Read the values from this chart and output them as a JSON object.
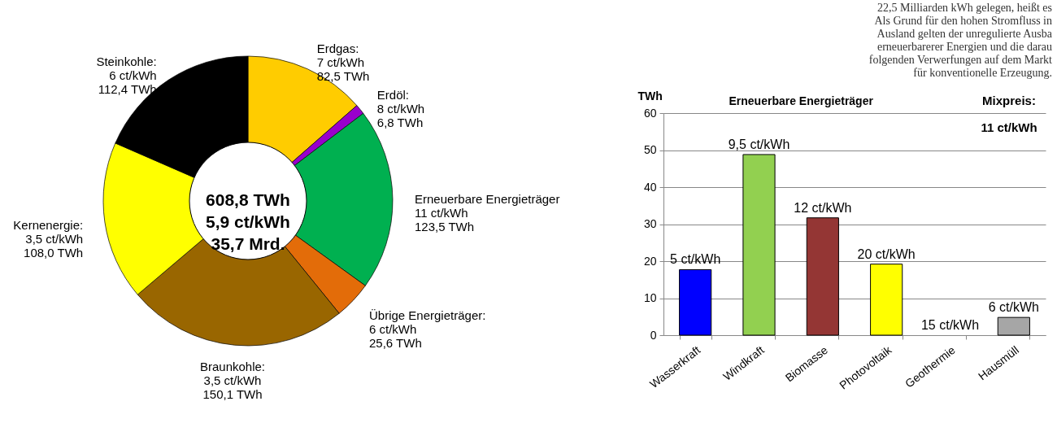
{
  "chart_data": [
    {
      "type": "donut",
      "categories": [
        "Erdgas: 7 ct/kWh",
        "Erdöl: 8 ct/kWh",
        "Erneuerbare Energieträger 11 ct/kWh",
        "Übrige Energieträger: 6 ct/kWh",
        "Braunkohle: 3,5 ct/kWh",
        "Kernenergie: 3,5 ct/kWh",
        "Steinkohle: 6 ct/kWh"
      ],
      "values": [
        82.5,
        6.8,
        123.5,
        25.6,
        150.1,
        108.0,
        112.4
      ],
      "value_labels": [
        "82,5 TWh",
        "6,8 TWh",
        "123,5 TWh",
        "25,6 TWh",
        "150,1 TWh",
        "108,0 TWh",
        "112,4 TWh"
      ],
      "colors": [
        "#ffcc00",
        "#9900cc",
        "#00b050",
        "#e36c09",
        "#996600",
        "#ffff00",
        "#000000"
      ],
      "annotations": [
        "608,8 TWh",
        "5,9 ct/kWh",
        "35,7 Mrd."
      ]
    },
    {
      "type": "bar",
      "title": "Erneuerbare Energieträger",
      "ylabel": "TWh",
      "categories": [
        "Wasserkraft",
        "Windkraft",
        "Biomasse",
        "Photovoltaik",
        "Geothermie",
        "Hausmüll"
      ],
      "values": [
        17.7,
        48.8,
        31.7,
        19.2,
        0,
        4.8
      ],
      "colors": [
        "#0000ff",
        "#92d050",
        "#943634",
        "#ffff00",
        "#ffffff",
        "#a6a6a6"
      ],
      "ylim": [
        0,
        60
      ],
      "yticks": [
        0,
        10,
        20,
        30,
        40,
        50,
        60
      ],
      "grid": "y",
      "annotations": [
        {
          "text": "5 ct/kWh",
          "x": "Wasserkraft",
          "y": 17.7
        },
        {
          "text": "9,5 ct/kWh",
          "x": "Windkraft",
          "y": 48.8
        },
        {
          "text": "12 ct/kWh",
          "x": "Biomasse",
          "y": 31.7
        },
        {
          "text": "20 ct/kWh",
          "x": "Photovoltaik",
          "y": 19.2
        },
        {
          "text": "15 ct/kWh",
          "x": "Geothermie",
          "y": 0
        },
        {
          "text": "6 ct/kWh",
          "x": "Hausmüll",
          "y": 4.8
        },
        "Mixpreis:",
        "11 ct/kWh",
        "22,5 Milliarden kWh gelegen, heißt es",
        "Als Grund für den hohen Stromfluss in",
        "Ausland gelten der unregulierte Ausba",
        "erneuerbarerer Energien und die darau",
        "folgenden Verwerfungen auf dem Markt",
        "für konventionelle Erzeugung."
      ]
    }
  ]
}
